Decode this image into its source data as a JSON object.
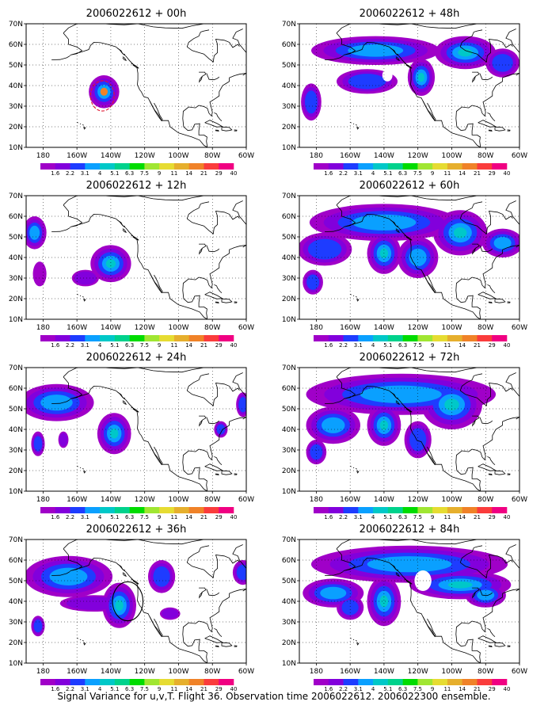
{
  "colors": {
    "map_line": "#000000",
    "grid": "#000000",
    "contour_red": "#e0162f",
    "contour_black": "#000000"
  },
  "chart_data": {
    "type": "heatmap",
    "colorbar": {
      "labels": [
        "1.6",
        "2.2",
        "3.1",
        "4",
        "5.1",
        "6.3",
        "7.5",
        "9",
        "11",
        "14",
        "21",
        "29",
        "40"
      ],
      "colors": [
        "#a000c8",
        "#8200dc",
        "#1e3cff",
        "#0aa0ff",
        "#00c8c8",
        "#00d28c",
        "#00dc00",
        "#a0e632",
        "#e6dc32",
        "#e6af2d",
        "#f08228",
        "#fa3c3c",
        "#f00082"
      ]
    },
    "x_ticks": [
      "180",
      "160W",
      "140W",
      "120W",
      "100W",
      "80W",
      "60W"
    ],
    "y_ticks": [
      "10N",
      "20N",
      "30N",
      "40N",
      "50N",
      "60N",
      "70N"
    ],
    "xlim": [
      -190,
      -60
    ],
    "ylim": [
      10,
      70
    ],
    "panels": [
      {
        "title": "2006022612 + 00h",
        "blobs": [
          [
            -200,
            47,
            8,
            10,
            3
          ],
          [
            -144,
            37,
            9,
            8,
            5,
            true
          ]
        ],
        "contour": {
          "lon": -145,
          "lat": 35,
          "r": 7,
          "color": "red"
        }
      },
      {
        "title": "2006022612 + 12h",
        "blobs": [
          [
            -185,
            52,
            7,
            8,
            4
          ],
          [
            -182,
            32,
            4,
            6,
            1
          ],
          [
            -140,
            37,
            12,
            9,
            5
          ],
          [
            -155,
            30,
            8,
            4,
            2
          ]
        ]
      },
      {
        "title": "2006022612 + 24h",
        "blobs": [
          [
            -172,
            53,
            22,
            9,
            4
          ],
          [
            -138,
            38,
            10,
            10,
            5
          ],
          [
            -183,
            33,
            4,
            6,
            3
          ],
          [
            -168,
            35,
            3,
            4,
            2
          ],
          [
            -75,
            40,
            4,
            4,
            3
          ],
          [
            -62,
            52,
            4,
            6,
            3
          ]
        ]
      },
      {
        "title": "2006022612 + 36h",
        "blobs": [
          [
            -165,
            52,
            26,
            10,
            4
          ],
          [
            -135,
            38,
            10,
            11,
            5
          ],
          [
            -183,
            28,
            4,
            5,
            3
          ],
          [
            -110,
            52,
            8,
            8,
            3
          ],
          [
            -62,
            54,
            6,
            6,
            3
          ],
          [
            -150,
            39,
            20,
            4,
            2
          ],
          [
            -105,
            34,
            6,
            3,
            2
          ]
        ],
        "contour": {
          "lon": -130,
          "lat": 40,
          "r": 9,
          "color": "black"
        }
      },
      {
        "title": "2006022612 + 48h",
        "blobs": [
          [
            -145,
            57,
            38,
            7,
            4
          ],
          [
            -92,
            56,
            18,
            8,
            5
          ],
          [
            -118,
            44,
            8,
            9,
            6
          ],
          [
            -183,
            32,
            6,
            9,
            3
          ],
          [
            -150,
            42,
            18,
            6,
            3
          ],
          [
            -70,
            51,
            10,
            7,
            3
          ]
        ],
        "hole": {
          "lon": -138,
          "lat": 45,
          "r": 3
        }
      },
      {
        "title": "2006022612 + 60h",
        "blobs": [
          [
            -140,
            57,
            44,
            9,
            4
          ],
          [
            -95,
            52,
            16,
            11,
            6
          ],
          [
            -140,
            42,
            10,
            10,
            5
          ],
          [
            -120,
            40,
            12,
            10,
            4
          ],
          [
            -175,
            44,
            16,
            8,
            3
          ],
          [
            -182,
            28,
            6,
            6,
            3
          ],
          [
            -70,
            47,
            12,
            7,
            4
          ]
        ]
      },
      {
        "title": "2006022612 + 72h",
        "blobs": [
          [
            -130,
            57,
            56,
            10,
            4
          ],
          [
            -100,
            52,
            18,
            12,
            6
          ],
          [
            -140,
            42,
            10,
            10,
            5
          ],
          [
            -170,
            42,
            16,
            9,
            4
          ],
          [
            -180,
            29,
            6,
            6,
            3
          ],
          [
            -120,
            35,
            8,
            9,
            3
          ]
        ]
      },
      {
        "title": "2006022612 + 84h",
        "blobs": [
          [
            -125,
            58,
            58,
            9,
            4
          ],
          [
            -95,
            48,
            30,
            7,
            6
          ],
          [
            -140,
            40,
            10,
            12,
            5
          ],
          [
            -170,
            44,
            18,
            7,
            4
          ],
          [
            -80,
            43,
            12,
            6,
            4
          ],
          [
            -160,
            37,
            8,
            6,
            3
          ]
        ],
        "hole": {
          "lon": -117,
          "lat": 50,
          "r": 5
        }
      }
    ]
  },
  "caption": "Signal Variance for u,v,T. Flight 36. Observation time 2006022612. 2006022300 ensemble."
}
